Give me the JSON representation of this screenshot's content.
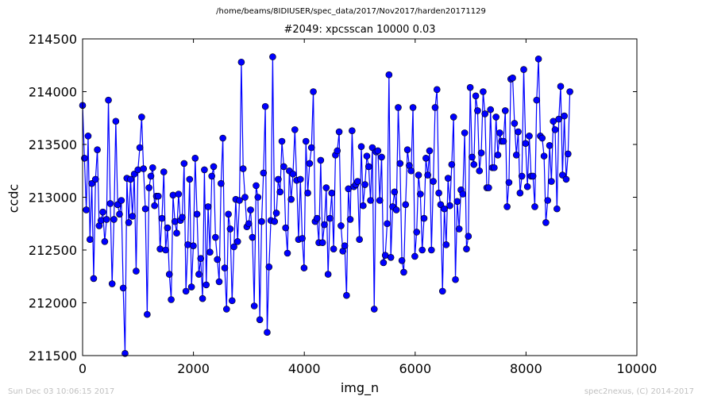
{
  "suptitle": "/home/beams/8IDIUSER/spec_data/2017/Nov2017/harden20171129",
  "footer": {
    "left": "Sun Dec 03 10:06:15 2017",
    "right": "spec2nexus, (C) 2014-2017"
  },
  "colors": {
    "series": "#0000ff",
    "frame": "#000000",
    "background": "#ffffff",
    "footer": "#c0c0c0"
  },
  "chart_data": {
    "type": "line",
    "title": "#2049: xpcsscan 10000 0.03",
    "xlabel": "img_n",
    "ylabel": "ccdc",
    "xlim": [
      0,
      10000
    ],
    "ylim": [
      211500,
      214500
    ],
    "xticks": [
      0,
      2000,
      4000,
      6000,
      8000,
      10000
    ],
    "yticks": [
      211500,
      212000,
      212500,
      213000,
      213500,
      214000,
      214500
    ],
    "xtick_labels": [
      "0",
      "2000",
      "4000",
      "6000",
      "8000",
      "10000"
    ],
    "ytick_labels": [
      "211500",
      "212000",
      "212500",
      "213000",
      "213500",
      "214000",
      "214500"
    ],
    "grid": false,
    "marker": "circle",
    "series": [
      {
        "x_start": 0,
        "x_step": 33.3,
        "y": [
          213870,
          213370,
          212880,
          213580,
          212600,
          213130,
          212230,
          213170,
          213450,
          212730,
          212780,
          212860,
          212580,
          212790,
          213920,
          212940,
          212180,
          212790,
          213720,
          212930,
          212840,
          212970,
          212140,
          211520,
          213180,
          212760,
          213170,
          212820,
          213220,
          212300,
          213260,
          213470,
          213760,
          213270,
          212890,
          211890,
          213090,
          213200,
          213280,
          212920,
          213010,
          213010,
          212510,
          212800,
          213240,
          212500,
          212710,
          212270,
          212030,
          213020,
          212770,
          212660,
          213030,
          212780,
          212810,
          213320,
          212110,
          212550,
          213170,
          212150,
          212540,
          213370,
          212840,
          212270,
          212420,
          212040,
          213260,
          212170,
          212910,
          212480,
          213200,
          213290,
          212620,
          212410,
          212200,
          213130,
          213560,
          212330,
          211940,
          212840,
          212700,
          212020,
          212530,
          212980,
          212580,
          212970,
          214280,
          213270,
          213000,
          212720,
          212750,
          212880,
          212620,
          211970,
          213110,
          213000,
          211840,
          212770,
          213230,
          213860,
          211720,
          212340,
          212780,
          214330,
          212770,
          212850,
          213170,
          213050,
          213530,
          213290,
          212710,
          212470,
          213250,
          212980,
          213220,
          213640,
          213160,
          212600,
          213170,
          212610,
          212330,
          213530,
          213040,
          213320,
          213470,
          214000,
          212770,
          212800,
          212570,
          213350,
          212570,
          212740,
          213090,
          212270,
          212800,
          213040,
          212510,
          213400,
          213440,
          213620,
          212730,
          212490,
          212540,
          212070,
          213080,
          212790,
          213630,
          213100,
          213120,
          213150,
          212600,
          213480,
          212920,
          213120,
          213390,
          213290,
          212970,
          213470,
          211940,
          213430,
          213440,
          212970,
          213380,
          212380,
          212450,
          212750,
          214160,
          212430,
          212910,
          213050,
          212880,
          213850,
          213320,
          212400,
          212290,
          212930,
          213450,
          213300,
          213250,
          213850,
          212440,
          212670,
          213210,
          213030,
          212500,
          212800,
          213370,
          213210,
          213440,
          212500,
          213150,
          213850,
          214020,
          213040,
          212930,
          212110,
          212890,
          212550,
          213180,
          212920,
          213310,
          213760,
          212220,
          212960,
          212700,
          213070,
          213030,
          213610,
          212510,
          212630,
          214040,
          213380,
          213310,
          213960,
          213820,
          213250,
          213420,
          214000,
          213790,
          213090,
          213090,
          213830,
          213280,
          213280,
          213760,
          213400,
          213610,
          213530,
          213530,
          213820,
          212910,
          213140,
          214120,
          214130,
          213700,
          213400,
          213620,
          213040,
          213200,
          214210,
          213510,
          213100,
          213580,
          213200,
          213200,
          212910,
          213920,
          214310,
          213580,
          213560,
          213390,
          212760,
          212970,
          213490,
          213150,
          213720,
          213640,
          212890,
          213740,
          214050,
          213210,
          213770,
          213170,
          213410,
          214000
        ]
      }
    ]
  }
}
